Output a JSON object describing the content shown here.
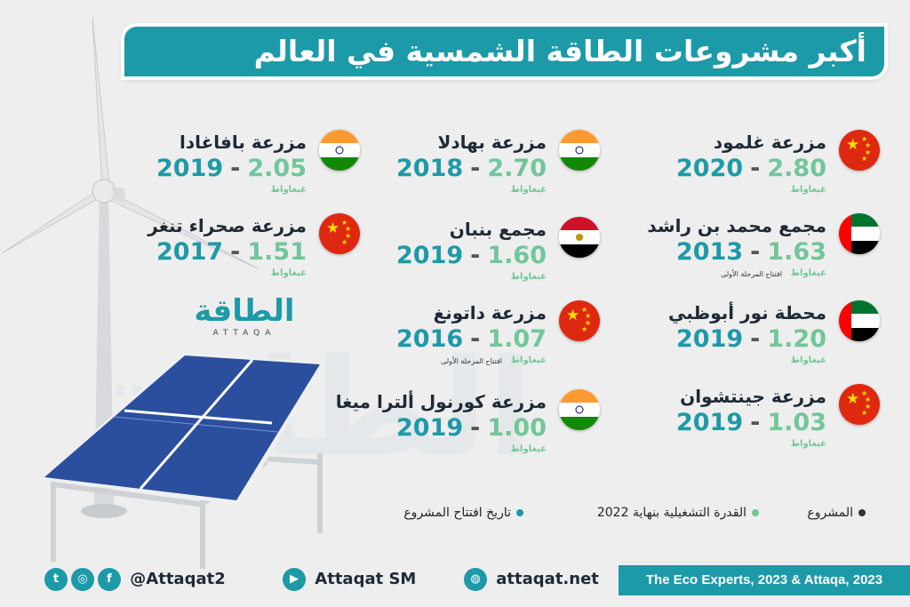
{
  "title": "أكبر مشروعات الطاقة الشمسية في العالم",
  "watermark": "الطاقة",
  "logo": {
    "text": "الطاقة",
    "sub": "ATTAQA"
  },
  "unit_label": "غيغاواط",
  "projects": [
    {
      "name": "مزرعة غلمود",
      "capacity": "2.80",
      "year": "2020",
      "flag": "china-flag-icon",
      "note": ""
    },
    {
      "name": "مجمع محمد بن راشد",
      "capacity": "1.63",
      "year": "2013",
      "flag": "uae-flag-icon",
      "note": "افتتاح المرحلة الأولى"
    },
    {
      "name": "محطة نور أبوظبي",
      "capacity": "1.20",
      "year": "2019",
      "flag": "uae-flag-icon",
      "note": ""
    },
    {
      "name": "مزرعة جينتشوان",
      "capacity": "1.03",
      "year": "2019",
      "flag": "china-flag-icon",
      "note": ""
    },
    {
      "name": "مزرعة بهادلا",
      "capacity": "2.70",
      "year": "2018",
      "flag": "india-flag-icon",
      "note": ""
    },
    {
      "name": "مجمع بنبان",
      "capacity": "1.60",
      "year": "2019",
      "flag": "egypt-flag-icon",
      "note": ""
    },
    {
      "name": "مزرعة داتونغ",
      "capacity": "1.07",
      "year": "2016",
      "flag": "china-flag-icon",
      "note": "افتتاح المرحلة الأولى"
    },
    {
      "name": "مزرعة كورنول ألترا ميغا",
      "capacity": "1.00",
      "year": "2019",
      "flag": "india-flag-icon",
      "note": ""
    },
    {
      "name": "مزرعة بافاغادا",
      "capacity": "2.05",
      "year": "2019",
      "flag": "india-flag-icon",
      "note": ""
    },
    {
      "name": "مزرعة صحراء تنغر",
      "capacity": "1.51",
      "year": "2017",
      "flag": "china-flag-icon",
      "note": ""
    }
  ],
  "dash": "-",
  "legend": {
    "project": "المشروع",
    "capacity": "القدرة التشغيلية بنهاية 2022",
    "date": "تاريخ افتتاح المشروع",
    "colors": {
      "project": "#333333",
      "capacity": "#71c69a",
      "date": "#1d9aa8"
    }
  },
  "footer": {
    "handle": "@Attaqat2",
    "youtube": "Attaqat SM",
    "website": "attaqat.net",
    "source": "The Eco Experts, 2023 & Attaqa, 2023"
  },
  "colors": {
    "accent": "#1d9aa8",
    "capacity": "#71c69a",
    "background": "#eeeeee"
  }
}
